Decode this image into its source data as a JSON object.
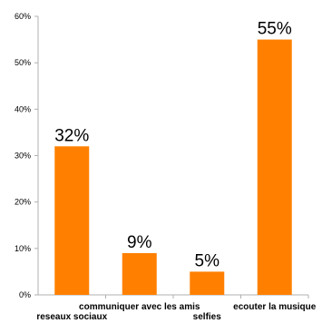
{
  "chart_data": {
    "type": "bar",
    "title": "",
    "categories": [
      "reseaux sociaux",
      "communiquer avec les amis",
      "selfies",
      "ecouter la musique"
    ],
    "values": [
      32,
      9,
      5,
      55
    ],
    "value_labels": [
      "32%",
      "9%",
      "5%",
      "55%"
    ],
    "xlabel": "",
    "ylabel": "",
    "ylim": [
      0,
      60
    ],
    "yticks": [
      "0%",
      "10%",
      "20%",
      "30%",
      "40%",
      "50%",
      "60%"
    ],
    "grid": false,
    "legend": "none",
    "bar_color": "#ff8000"
  }
}
